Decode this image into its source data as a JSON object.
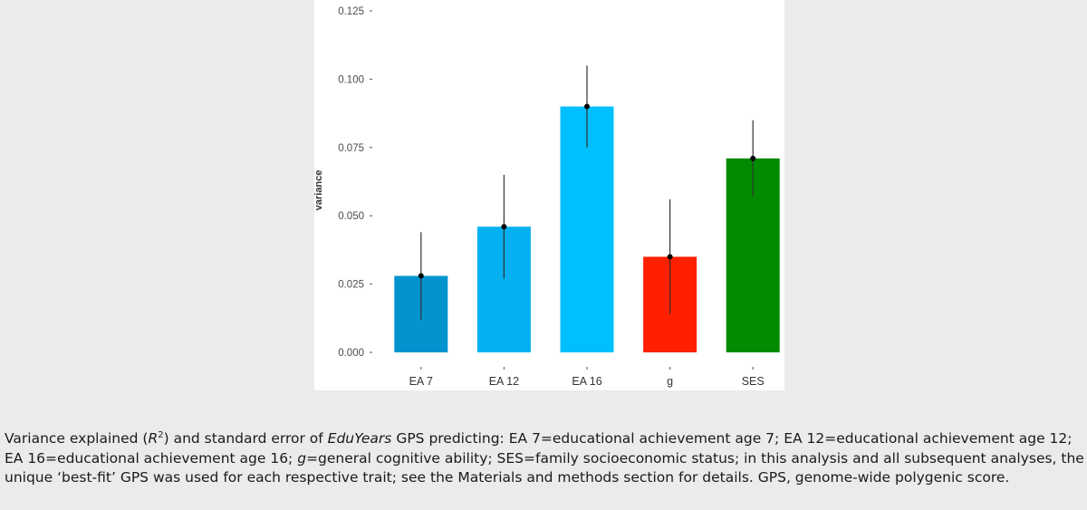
{
  "chart_data": {
    "type": "bar",
    "ylabel": "variance",
    "xlabel": "",
    "ylim": [
      0,
      0.125
    ],
    "yticks": [
      "0.000",
      "0.025",
      "0.050",
      "0.075",
      "0.100",
      "0.125"
    ],
    "categories": [
      "EA 7",
      "EA 12",
      "EA 16",
      "g",
      "SES"
    ],
    "values": [
      0.028,
      0.046,
      0.09,
      0.035,
      0.071
    ],
    "error_low": [
      0.012,
      0.027,
      0.075,
      0.014,
      0.057
    ],
    "error_high": [
      0.044,
      0.065,
      0.105,
      0.056,
      0.085
    ],
    "colors": [
      "#0394d0",
      "#04b0f0",
      "#00bfff",
      "#ff2000",
      "#008b00"
    ],
    "grid": false,
    "legend": "none"
  },
  "caption": {
    "p1": "Variance explained (",
    "r": "R",
    "sup": "2",
    "p2": ") and standard error of ",
    "em1": "EduYears",
    "p3": " GPS predicting: EA 7=educational achievement age 7; EA 12=educational achievement age 12; EA 16=educational achievement age 16; ",
    "em2": "g",
    "p4": "=general cognitive ability; SES=family socioeconomic status; in this analysis and all subsequent analyses, the unique ‘best-fit’ GPS was used for each respective trait; see the Materials and methods section for details. GPS, genome-wide polygenic score."
  }
}
